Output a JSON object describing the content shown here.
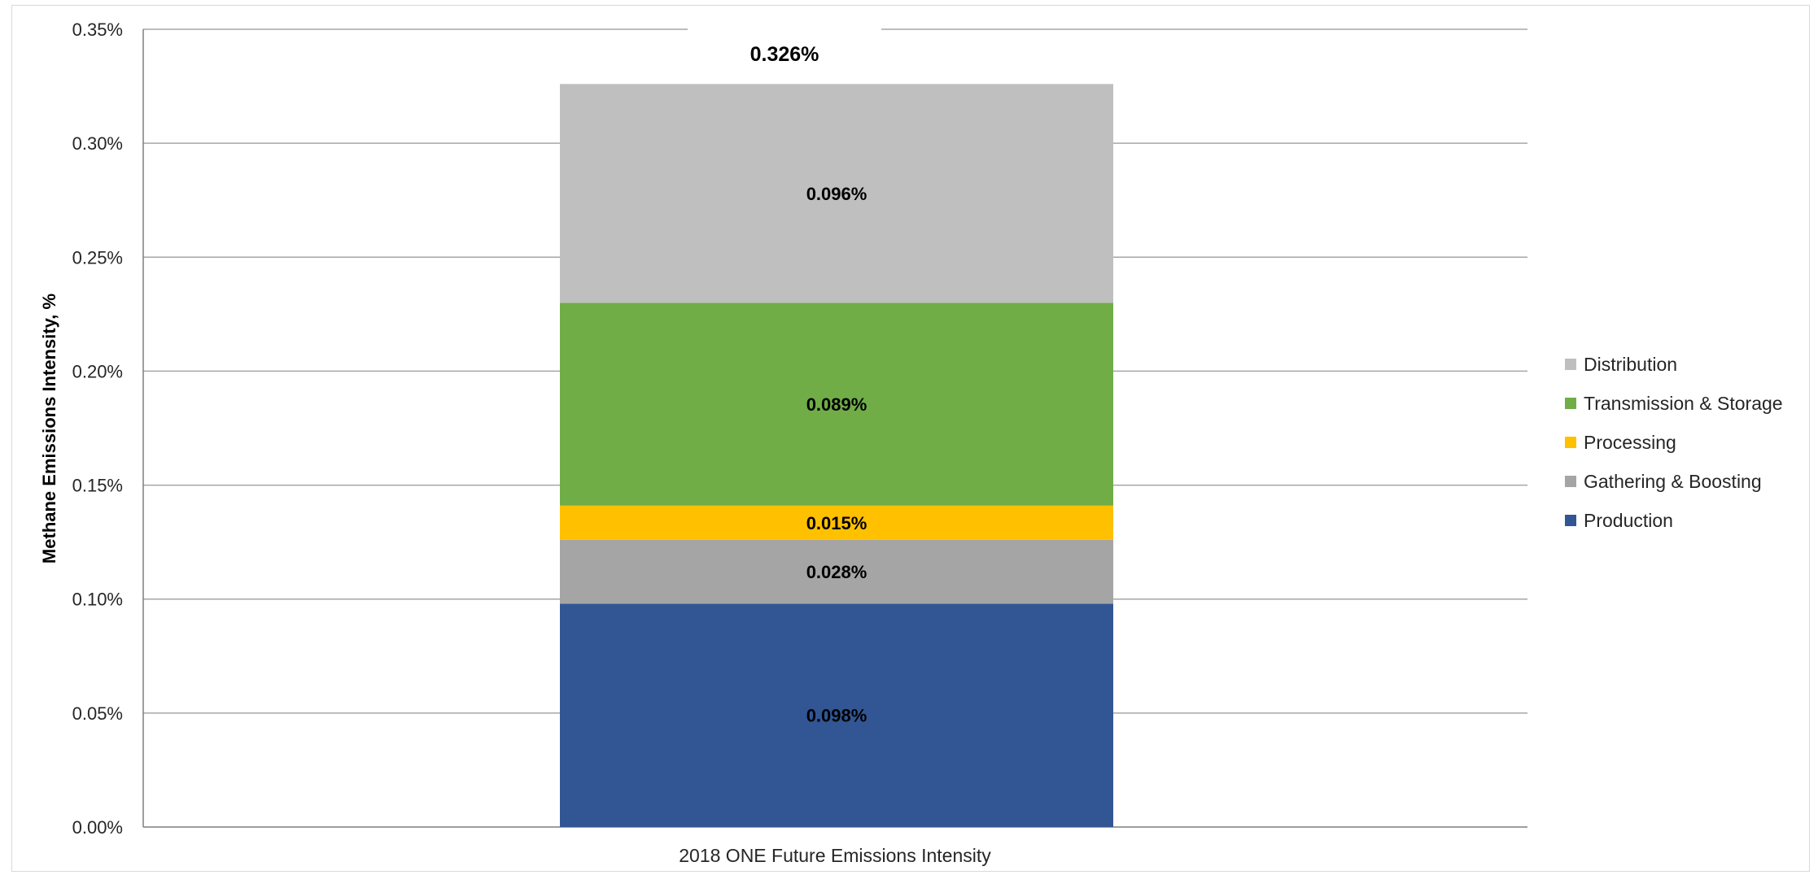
{
  "chart_data": {
    "type": "bar",
    "stacked": true,
    "categories": [
      "2018 ONE Future Emissions Intensity"
    ],
    "series": [
      {
        "name": "Production",
        "values": [
          0.098
        ],
        "label": "0.098%",
        "color": "#325694"
      },
      {
        "name": "Gathering & Boosting",
        "values": [
          0.028
        ],
        "label": "0.028%",
        "color": "#a5a5a5"
      },
      {
        "name": "Processing",
        "values": [
          0.015
        ],
        "label": "0.015%",
        "color": "#ffc000"
      },
      {
        "name": "Transmission & Storage",
        "values": [
          0.089
        ],
        "label": "0.089%",
        "color": "#70ad47"
      },
      {
        "name": "Distribution",
        "values": [
          0.096
        ],
        "label": "0.096%",
        "color": "#bfbfbf"
      }
    ],
    "total": 0.326,
    "total_label": "0.326%",
    "ylabel": "Methane Emissions Intensity, %",
    "xlabel": "",
    "ylim": [
      0,
      0.35
    ],
    "yticks": [
      0,
      0.05,
      0.1,
      0.15,
      0.2,
      0.25,
      0.3,
      0.35
    ],
    "ytick_labels": [
      "0.00%",
      "0.05%",
      "0.10%",
      "0.15%",
      "0.20%",
      "0.25%",
      "0.30%",
      "0.35%"
    ],
    "grid": true,
    "legend_position": "right",
    "legend_order": [
      "Distribution",
      "Transmission & Storage",
      "Processing",
      "Gathering & Boosting",
      "Production"
    ]
  }
}
